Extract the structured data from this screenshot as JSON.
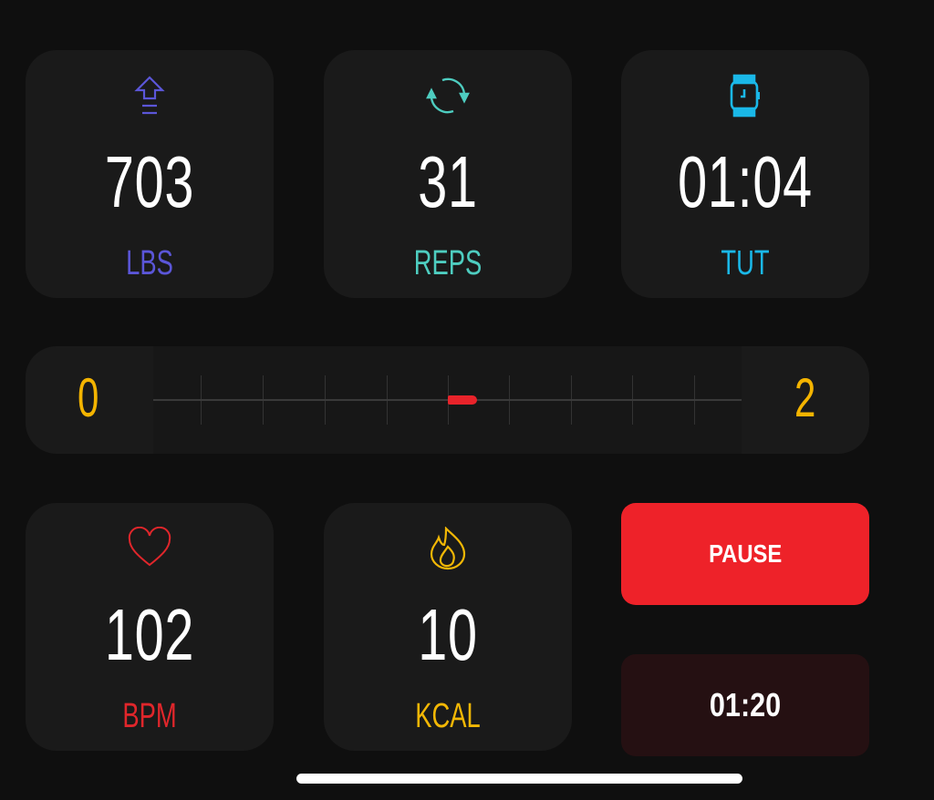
{
  "stats": [
    {
      "id": "lbs",
      "value": "703",
      "label": "LBS",
      "icon": "weight-up-arrow-icon",
      "color": "#5b56d8"
    },
    {
      "id": "reps",
      "value": "31",
      "label": "REPS",
      "icon": "repeat-cycle-icon",
      "color": "#4ecdc0"
    },
    {
      "id": "tut",
      "value": "01:04",
      "label": "TUT",
      "icon": "smartwatch-icon",
      "color": "#1ab8e8"
    },
    {
      "id": "bpm",
      "value": "102",
      "label": "BPM",
      "icon": "heart-icon",
      "color": "#e0262b"
    },
    {
      "id": "kcal",
      "value": "10",
      "label": "KCAL",
      "icon": "flame-icon",
      "color": "#f2b705"
    }
  ],
  "slider": {
    "min_label": "0",
    "max_label": "2",
    "min": 0,
    "max": 2,
    "value": 1.05,
    "marker_color": "#e8232a"
  },
  "pause_label": "PAUSE",
  "timer": "01:20"
}
